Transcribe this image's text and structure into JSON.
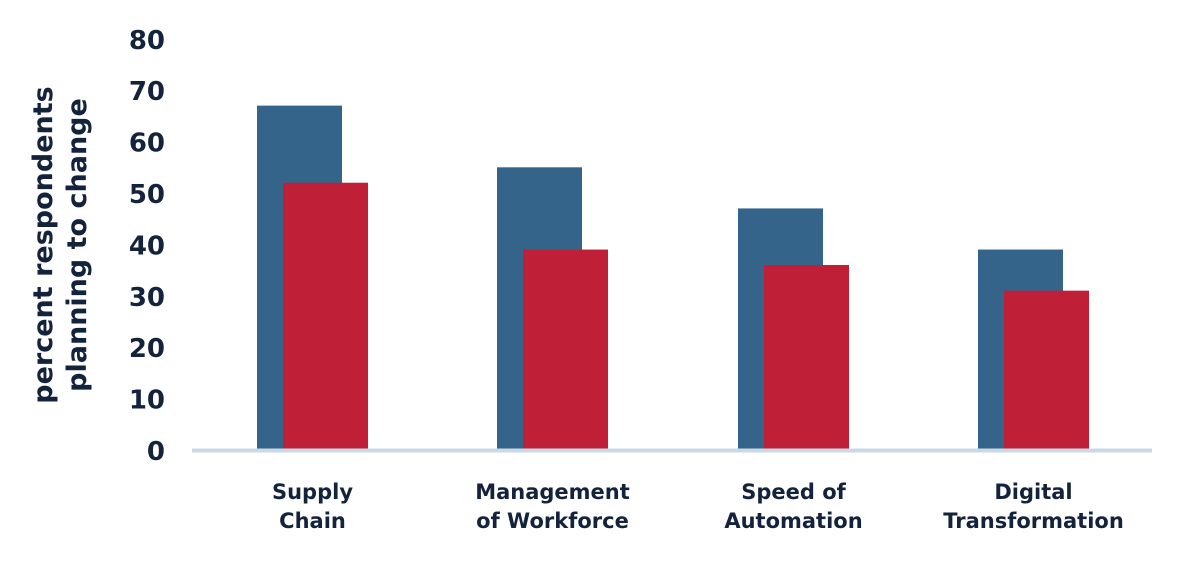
{
  "chart_data": {
    "type": "bar",
    "categories": [
      [
        "Supply",
        "Chain"
      ],
      [
        "Management",
        "of Workforce"
      ],
      [
        "Speed of",
        "Automation"
      ],
      [
        "Digital",
        "Transformation"
      ]
    ],
    "series": [
      {
        "color": "#35648b",
        "values": [
          67,
          55,
          47,
          39
        ]
      },
      {
        "color": "#bf2038",
        "values": [
          52,
          39,
          36,
          31
        ]
      }
    ],
    "ylabel": [
      "percent respondents",
      "planning to change"
    ],
    "ylim": [
      0,
      80
    ],
    "yticks": [
      "0",
      "10",
      "20",
      "30",
      "40",
      "50",
      "60",
      "70",
      "80"
    ],
    "grid": false,
    "baseline_color": "#c9d9e6",
    "text_color": "#14233c"
  }
}
